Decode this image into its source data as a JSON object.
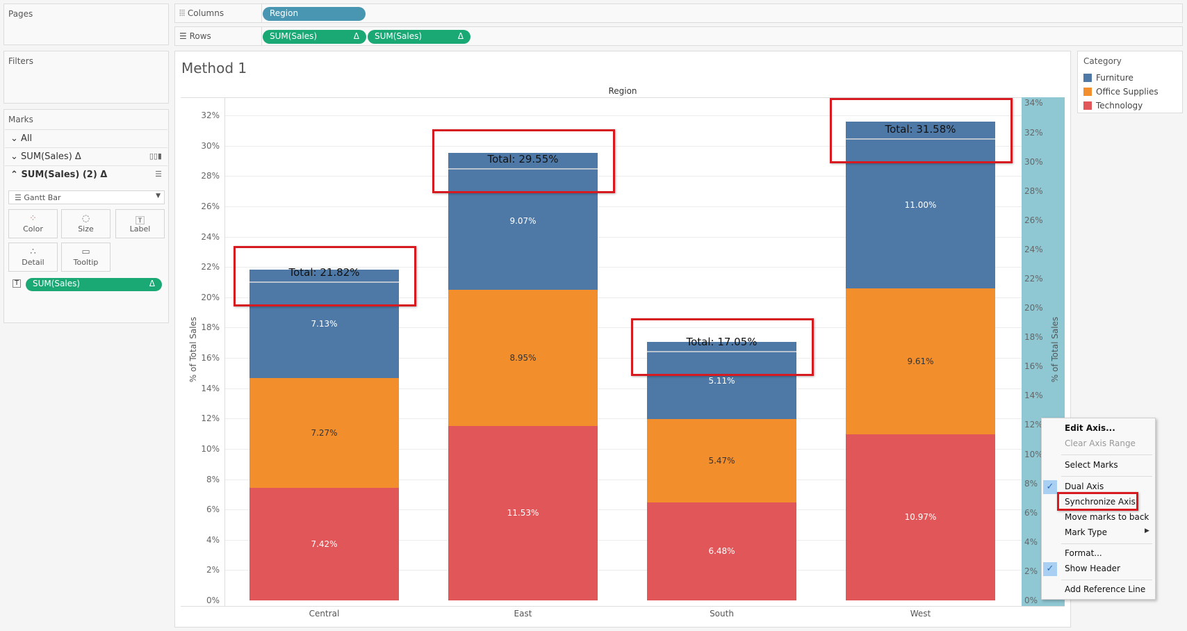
{
  "left_panel": {
    "pages_title": "Pages",
    "filters_title": "Filters",
    "marks_title": "Marks",
    "marks_rows": [
      {
        "label": "All",
        "chevron": "chevron-down-icon"
      },
      {
        "label": "SUM(Sales)  Δ",
        "chevron": "chevron-down-icon",
        "mark_icon": "bar-chart-icon"
      },
      {
        "label": "SUM(Sales) (2)  Δ",
        "chevron": "chevron-up-icon",
        "mark_icon": "gantt-icon"
      }
    ],
    "mark_type": "Gantt Bar",
    "cards": [
      "Color",
      "Size",
      "Label",
      "Detail",
      "Tooltip"
    ],
    "label_pill": "SUM(Sales)",
    "label_pill_delta": "Δ"
  },
  "shelves": {
    "columns_label": "Columns",
    "rows_label": "Rows",
    "columns_pills": [
      "Region"
    ],
    "rows_pills": [
      "SUM(Sales)",
      "SUM(Sales)"
    ],
    "delta": "Δ"
  },
  "viz": {
    "title": "Method 1"
  },
  "legend": {
    "title": "Category",
    "items": [
      {
        "label": "Furniture",
        "color": "#4e79a7"
      },
      {
        "label": "Office Supplies",
        "color": "#f28e2b"
      },
      {
        "label": "Technology",
        "color": "#e15759"
      }
    ]
  },
  "chart_data": {
    "type": "bar",
    "stacked": true,
    "column_header": "Region",
    "categories": [
      "Central",
      "East",
      "South",
      "West"
    ],
    "series": [
      {
        "name": "Technology",
        "color": "#e15759",
        "values": [
          7.42,
          11.53,
          6.48,
          10.97
        ],
        "labels": [
          "7.42%",
          "11.53%",
          "6.48%",
          "10.97%"
        ]
      },
      {
        "name": "Office Supplies",
        "color": "#f28e2b",
        "values": [
          7.27,
          8.95,
          5.47,
          9.61
        ],
        "labels": [
          "7.27%",
          "8.95%",
          "5.47%",
          "9.61%"
        ]
      },
      {
        "name": "Furniture",
        "color": "#4e79a7",
        "values": [
          7.13,
          9.07,
          5.11,
          11.0
        ],
        "labels": [
          "7.13%",
          "9.07%",
          "5.11%",
          "11.00%"
        ]
      }
    ],
    "totals": [
      21.82,
      29.55,
      17.05,
      31.58
    ],
    "total_labels": [
      "Total: 21.82%",
      "Total: 29.55%",
      "Total: 17.05%",
      "Total: 31.58%"
    ],
    "ylabel": "% of Total Sales",
    "y_ticks": [
      "0%",
      "2%",
      "4%",
      "6%",
      "8%",
      "10%",
      "12%",
      "14%",
      "16%",
      "18%",
      "20%",
      "22%",
      "24%",
      "26%",
      "28%",
      "30%",
      "32%"
    ],
    "ylim": [
      0,
      33.2
    ],
    "y2label": "% of Total Sales",
    "y2_ticks": [
      "0%",
      "2%",
      "4%",
      "6%",
      "8%",
      "10%",
      "12%",
      "14%",
      "16%",
      "18%",
      "20%",
      "22%",
      "24%",
      "26%",
      "28%",
      "30%",
      "32%",
      "34%"
    ],
    "y2lim": [
      0,
      34.4
    ],
    "grid": true,
    "secondary_mark": "gantt",
    "highlight_color": "#d71920"
  },
  "context_menu": {
    "items": [
      {
        "label": "Edit Axis...",
        "bold": true
      },
      {
        "label": "Clear Axis Range",
        "disabled": true
      },
      {
        "label": "Select Marks"
      },
      {
        "label": "Dual Axis",
        "checked": true
      },
      {
        "label": "Synchronize Axis",
        "highlighted": true
      },
      {
        "label": "Move marks to back"
      },
      {
        "label": "Mark Type",
        "submenu": true
      },
      {
        "label": "Format..."
      },
      {
        "label": "Show Header",
        "checked": true
      },
      {
        "label": "Add Reference Line"
      }
    ]
  }
}
